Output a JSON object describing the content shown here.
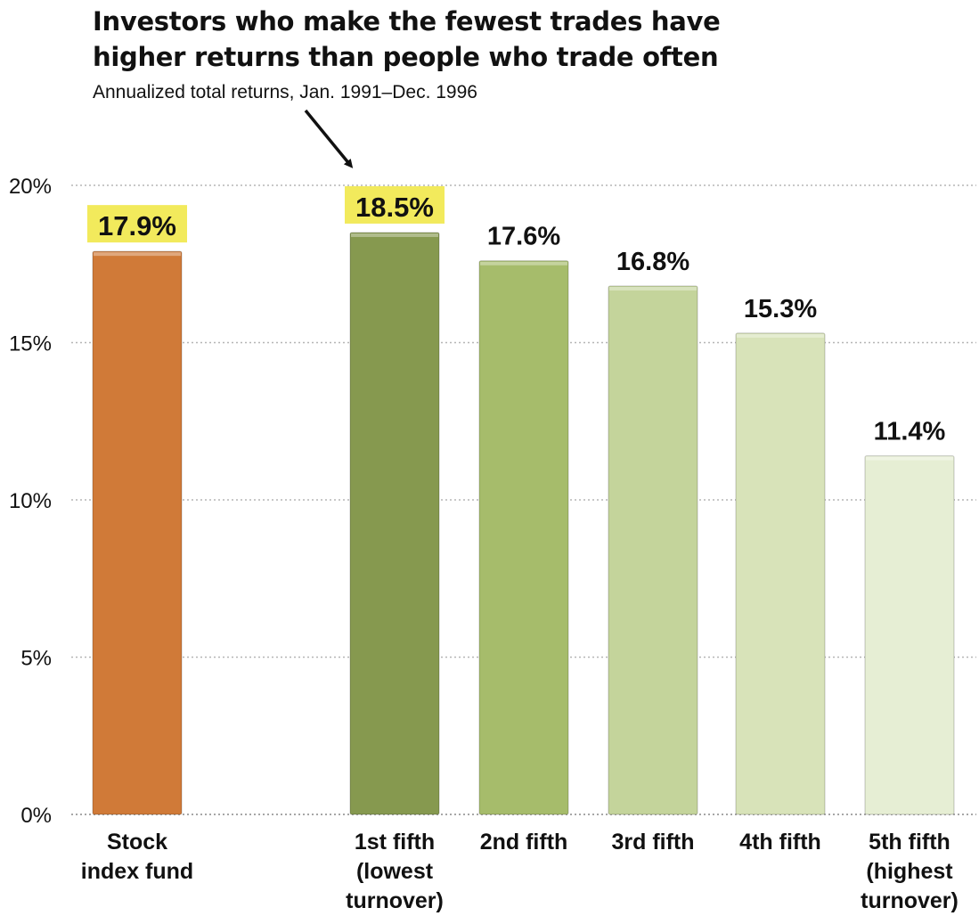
{
  "chart_data": {
    "type": "bar",
    "title_lines": [
      "Investors who make the fewest trades have",
      "higher returns than people who trade often"
    ],
    "subtitle": "Annualized total returns, Jan. 1991–Dec. 1996",
    "categories": [
      [
        "Stock",
        "index fund"
      ],
      [
        "1st fifth",
        "(lowest",
        "turnover)"
      ],
      [
        "2nd fifth"
      ],
      [
        "3rd fifth"
      ],
      [
        "4th fifth"
      ],
      [
        "5th fifth",
        "(highest",
        "turnover)"
      ]
    ],
    "values": [
      17.9,
      18.5,
      17.6,
      16.8,
      15.3,
      11.4
    ],
    "value_labels": [
      "17.9%",
      "18.5%",
      "17.6%",
      "16.8%",
      "15.3%",
      "11.4%"
    ],
    "highlighted": [
      true,
      true,
      false,
      false,
      false,
      false
    ],
    "colors": [
      "#d07a38",
      "#86994f",
      "#a6bc6b",
      "#c4d49b",
      "#d8e3b9",
      "#e6eed4"
    ],
    "highlight_color": "#f2ea5c",
    "ylim": [
      0,
      20
    ],
    "yticks": [
      0,
      5,
      10,
      15,
      20
    ],
    "ytick_labels": [
      "0%",
      "5%",
      "10%",
      "15%",
      "20%"
    ],
    "grid": true,
    "annotation": "arrow from subtitle to 1st fifth bar"
  }
}
